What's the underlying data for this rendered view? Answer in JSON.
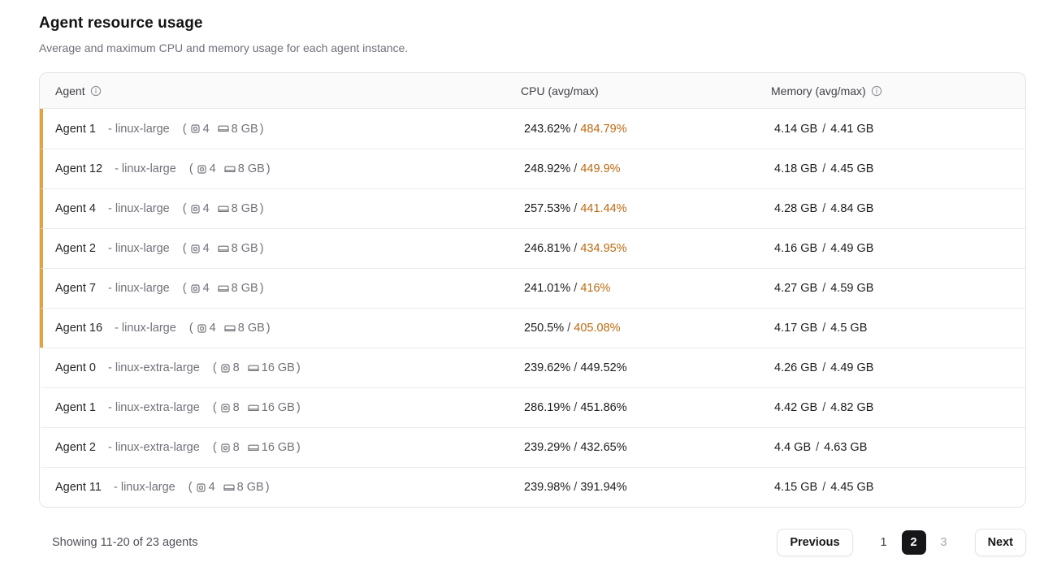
{
  "page": {
    "title": "Agent resource usage",
    "subtitle": "Average and maximum CPU and memory usage for each agent instance."
  },
  "colors": {
    "flag_border": "#e2a33d",
    "warn_text": "#bc6a10",
    "active_page_bg": "#161619",
    "header_bg": "#fafafa",
    "border": "#e4e4e7"
  },
  "table": {
    "columns": {
      "agent": "Agent",
      "cpu": "CPU (avg/max)",
      "memory": "Memory (avg/max)"
    },
    "format": {
      "paren_open": "(",
      "paren_close": ")",
      "separator": " / "
    },
    "rows": [
      {
        "name": "Agent 1",
        "size_label": "- linux-large",
        "cpu_count": "4",
        "memory_size": "8 GB",
        "cpu_avg": "243.62%",
        "cpu_max": "484.79%",
        "mem_avg": "4.14 GB",
        "mem_max": "4.41 GB",
        "flagged": true
      },
      {
        "name": "Agent 12",
        "size_label": "- linux-large",
        "cpu_count": "4",
        "memory_size": "8 GB",
        "cpu_avg": "248.92%",
        "cpu_max": "449.9%",
        "mem_avg": "4.18 GB",
        "mem_max": "4.45 GB",
        "flagged": true
      },
      {
        "name": "Agent 4",
        "size_label": "- linux-large",
        "cpu_count": "4",
        "memory_size": "8 GB",
        "cpu_avg": "257.53%",
        "cpu_max": "441.44%",
        "mem_avg": "4.28 GB",
        "mem_max": "4.84 GB",
        "flagged": true
      },
      {
        "name": "Agent 2",
        "size_label": "- linux-large",
        "cpu_count": "4",
        "memory_size": "8 GB",
        "cpu_avg": "246.81%",
        "cpu_max": "434.95%",
        "mem_avg": "4.16 GB",
        "mem_max": "4.49 GB",
        "flagged": true
      },
      {
        "name": "Agent 7",
        "size_label": "- linux-large",
        "cpu_count": "4",
        "memory_size": "8 GB",
        "cpu_avg": "241.01%",
        "cpu_max": "416%",
        "mem_avg": "4.27 GB",
        "mem_max": "4.59 GB",
        "flagged": true
      },
      {
        "name": "Agent 16",
        "size_label": "- linux-large",
        "cpu_count": "4",
        "memory_size": "8 GB",
        "cpu_avg": "250.5%",
        "cpu_max": "405.08%",
        "mem_avg": "4.17 GB",
        "mem_max": "4.5 GB",
        "flagged": true
      },
      {
        "name": "Agent 0",
        "size_label": "- linux-extra-large",
        "cpu_count": "8",
        "memory_size": "16 GB",
        "cpu_avg": "239.62%",
        "cpu_max": "449.52%",
        "mem_avg": "4.26 GB",
        "mem_max": "4.49 GB",
        "flagged": false
      },
      {
        "name": "Agent 1",
        "size_label": "- linux-extra-large",
        "cpu_count": "8",
        "memory_size": "16 GB",
        "cpu_avg": "286.19%",
        "cpu_max": "451.86%",
        "mem_avg": "4.42 GB",
        "mem_max": "4.82 GB",
        "flagged": false
      },
      {
        "name": "Agent 2",
        "size_label": "- linux-extra-large",
        "cpu_count": "8",
        "memory_size": "16 GB",
        "cpu_avg": "239.29%",
        "cpu_max": "432.65%",
        "mem_avg": "4.4 GB",
        "mem_max": "4.63 GB",
        "flagged": false
      },
      {
        "name": "Agent 11",
        "size_label": "- linux-large",
        "cpu_count": "4",
        "memory_size": "8 GB",
        "cpu_avg": "239.98%",
        "cpu_max": "391.94%",
        "mem_avg": "4.15 GB",
        "mem_max": "4.45 GB",
        "flagged": false
      }
    ]
  },
  "footer": {
    "showing": "Showing 11-20 of 23 agents",
    "previous_label": "Previous",
    "next_label": "Next",
    "pages": [
      {
        "label": "1",
        "active": false,
        "muted": false
      },
      {
        "label": "2",
        "active": true,
        "muted": false
      },
      {
        "label": "3",
        "active": false,
        "muted": true
      }
    ]
  }
}
